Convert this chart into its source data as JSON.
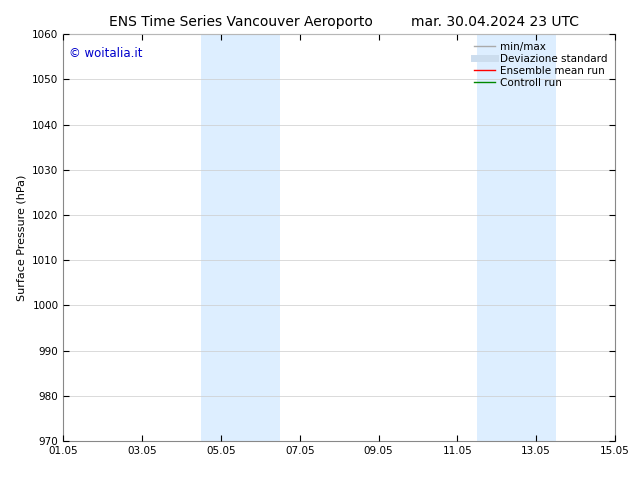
{
  "title_left": "ENS Time Series Vancouver Aeroporto",
  "title_right": "mar. 30.04.2024 23 UTC",
  "ylabel": "Surface Pressure (hPa)",
  "ylim": [
    970,
    1060
  ],
  "yticks": [
    970,
    980,
    990,
    1000,
    1010,
    1020,
    1030,
    1040,
    1050,
    1060
  ],
  "xlim_start": 0,
  "xlim_end": 14,
  "xtick_labels": [
    "01.05",
    "03.05",
    "05.05",
    "07.05",
    "09.05",
    "11.05",
    "13.05",
    "15.05"
  ],
  "xtick_positions": [
    0,
    2,
    4,
    6,
    8,
    10,
    12,
    14
  ],
  "shaded_bands": [
    {
      "xstart": 3.5,
      "xend": 4.5
    },
    {
      "xstart": 4.5,
      "xend": 5.5
    },
    {
      "xstart": 10.5,
      "xend": 11.5
    },
    {
      "xstart": 11.5,
      "xend": 12.5
    }
  ],
  "shaded_color": "#ddeeff",
  "watermark_text": "© woitalia.it",
  "watermark_color": "#0000cc",
  "legend_items": [
    {
      "label": "min/max",
      "color": "#aaaaaa",
      "lw": 1.0
    },
    {
      "label": "Deviazione standard",
      "color": "#ccddee",
      "lw": 5
    },
    {
      "label": "Ensemble mean run",
      "color": "#ff0000",
      "lw": 1.0
    },
    {
      "label": "Controll run",
      "color": "#008800",
      "lw": 1.0
    }
  ],
  "bg_color": "#ffffff",
  "grid_color": "#cccccc",
  "title_fontsize": 10,
  "label_fontsize": 8,
  "tick_fontsize": 7.5,
  "legend_fontsize": 7.5
}
